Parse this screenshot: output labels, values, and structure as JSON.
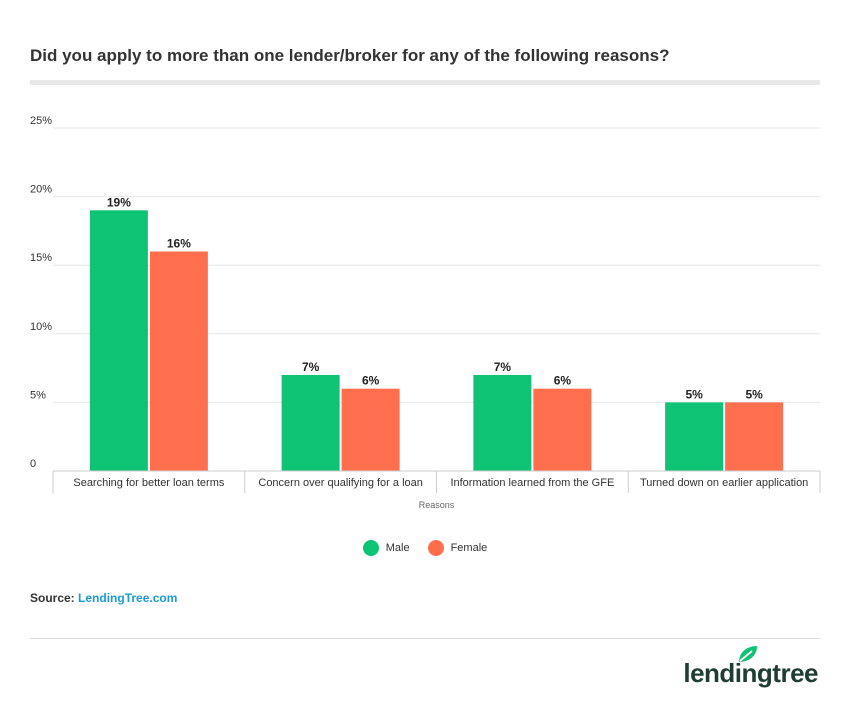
{
  "title": "Did you apply to more than one lender/broker for any of the following reasons?",
  "colors": {
    "male": "#0fc375",
    "female": "#ff6f4e",
    "grid": "#e6e6e6",
    "axis": "#cccccc"
  },
  "chart_data": {
    "type": "bar",
    "title": "Did you apply to more than one lender/broker for any of the following reasons?",
    "xlabel": "Reasons",
    "ylabel": "",
    "ylim": [
      0,
      25
    ],
    "yticks": [
      0,
      5,
      10,
      15,
      20,
      25
    ],
    "ytick_labels": [
      "0",
      "5%",
      "10%",
      "15%",
      "20%",
      "25%"
    ],
    "grid": true,
    "legend_position": "bottom-center",
    "categories": [
      "Searching for better loan terms",
      "Concern over qualifying for a loan",
      "Information learned from the GFE",
      "Turned down on earlier application"
    ],
    "series": [
      {
        "name": "Male",
        "values": [
          19,
          7,
          7,
          5
        ],
        "labels": [
          "19%",
          "7%",
          "7%",
          "5%"
        ]
      },
      {
        "name": "Female",
        "values": [
          16,
          6,
          6,
          5
        ],
        "labels": [
          "16%",
          "6%",
          "6%",
          "5%"
        ]
      }
    ]
  },
  "legend": {
    "male": "Male",
    "female": "Female"
  },
  "source": {
    "label": "Source:",
    "link": "LendingTree.com"
  },
  "logo": {
    "text": "lendingtree",
    "icon": "leaf-icon"
  }
}
